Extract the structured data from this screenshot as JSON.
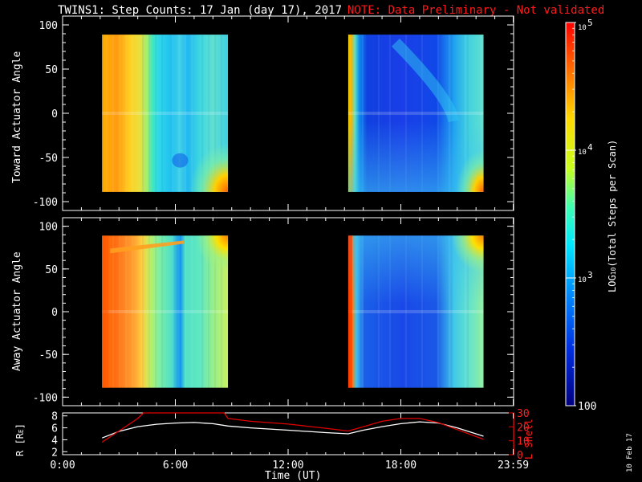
{
  "header": {
    "title": "TWINS1: Step Counts: 17 Jan (day  17), 2017",
    "note": "NOTE: Data Preliminary - Not validated"
  },
  "side_stamp": "10 Feb 17",
  "colorbar": {
    "label": "LOG10(Total Steps per Scan)",
    "label_prefix": "LOG",
    "label_sub": "10",
    "label_suffix": "(Total Steps per Scan)",
    "tick_labels": [
      "10",
      "10",
      "10",
      "100"
    ],
    "tick_exps": [
      "5",
      "4",
      "3",
      ""
    ],
    "range": [
      100,
      100000
    ],
    "scale": "log"
  },
  "colors": {
    "background": "#000000",
    "text": "#ffffff",
    "note": "#ff1a1a",
    "r_line": "#ffffff",
    "lshell_line": "#e00000"
  },
  "chart_data": [
    {
      "type": "heatmap",
      "name_panel": "toward",
      "ylabel": "Toward Actuator Angle",
      "yticks": [
        "100",
        "50",
        "0",
        "-50",
        "-100"
      ],
      "ytick_values": [
        100,
        50,
        0,
        -50,
        -100
      ],
      "ylim": [
        -110,
        110
      ],
      "xlim": [
        0,
        24
      ],
      "data_blocks": [
        {
          "x": [
            2.1,
            8.8
          ],
          "y": [
            -89,
            89
          ],
          "dominant_log10": 3.4
        },
        {
          "x": [
            15.2,
            22.4
          ],
          "y": [
            -89,
            89
          ],
          "dominant_log10": 2.6
        }
      ]
    },
    {
      "type": "heatmap",
      "name_panel": "away",
      "ylabel": "Away Actuator Angle",
      "yticks": [
        "100",
        "50",
        "0",
        "-50",
        "-100"
      ],
      "ytick_values": [
        100,
        50,
        0,
        -50,
        -100
      ],
      "ylim": [
        -110,
        110
      ],
      "xlim": [
        0,
        24
      ],
      "data_blocks": [
        {
          "x": [
            2.1,
            8.8
          ],
          "y": [
            -89,
            89
          ],
          "dominant_log10": 3.5
        },
        {
          "x": [
            15.2,
            22.4
          ],
          "y": [
            -89,
            89
          ],
          "dominant_log10": 2.6
        }
      ]
    },
    {
      "type": "line",
      "name_panel": "orbit",
      "ylabel_left": "R [RE]",
      "ylabel_left_main": "R [R",
      "ylabel_left_sub": "E",
      "ylabel_left_end": "]",
      "ylabel_right": "L Shell",
      "xlabel": "Time (UT)",
      "xticks": [
        "0:00",
        "6:00",
        "12:00",
        "18:00",
        "23:59"
      ],
      "xtick_values": [
        0,
        6,
        12,
        18,
        23.98
      ],
      "xlim": [
        0,
        24
      ],
      "yticks_left": [
        "8",
        "6",
        "4",
        "2"
      ],
      "ytick_left_values": [
        8,
        6,
        4,
        2
      ],
      "ylim_left": [
        1.5,
        8.5
      ],
      "yticks_right": [
        "30",
        "20",
        "10",
        "0"
      ],
      "ytick_right_values": [
        30,
        20,
        10,
        0
      ],
      "ylim_right": [
        0,
        30
      ],
      "series": [
        {
          "name": "R",
          "axis": "left",
          "x": [
            2.1,
            3,
            4,
            5,
            6,
            7,
            8,
            8.8,
            10,
            12,
            14,
            15.2,
            16,
            17,
            18,
            19,
            20,
            21,
            22.4
          ],
          "y": [
            4.3,
            5.4,
            6.2,
            6.6,
            6.8,
            6.9,
            6.7,
            6.3,
            6.0,
            5.6,
            5.2,
            5.0,
            5.6,
            6.2,
            6.7,
            7.0,
            6.8,
            6.0,
            4.6
          ]
        },
        {
          "name": "L Shell",
          "axis": "right",
          "x": [
            2.1,
            3,
            4,
            4.3,
            8.6,
            8.8,
            10,
            12,
            14,
            15.2,
            16,
            17,
            18,
            19,
            20,
            21,
            22.4
          ],
          "y": [
            9,
            17,
            26,
            30,
            30,
            26,
            24,
            22,
            19,
            17,
            20,
            24,
            26,
            26,
            23,
            18,
            11
          ]
        }
      ]
    }
  ]
}
